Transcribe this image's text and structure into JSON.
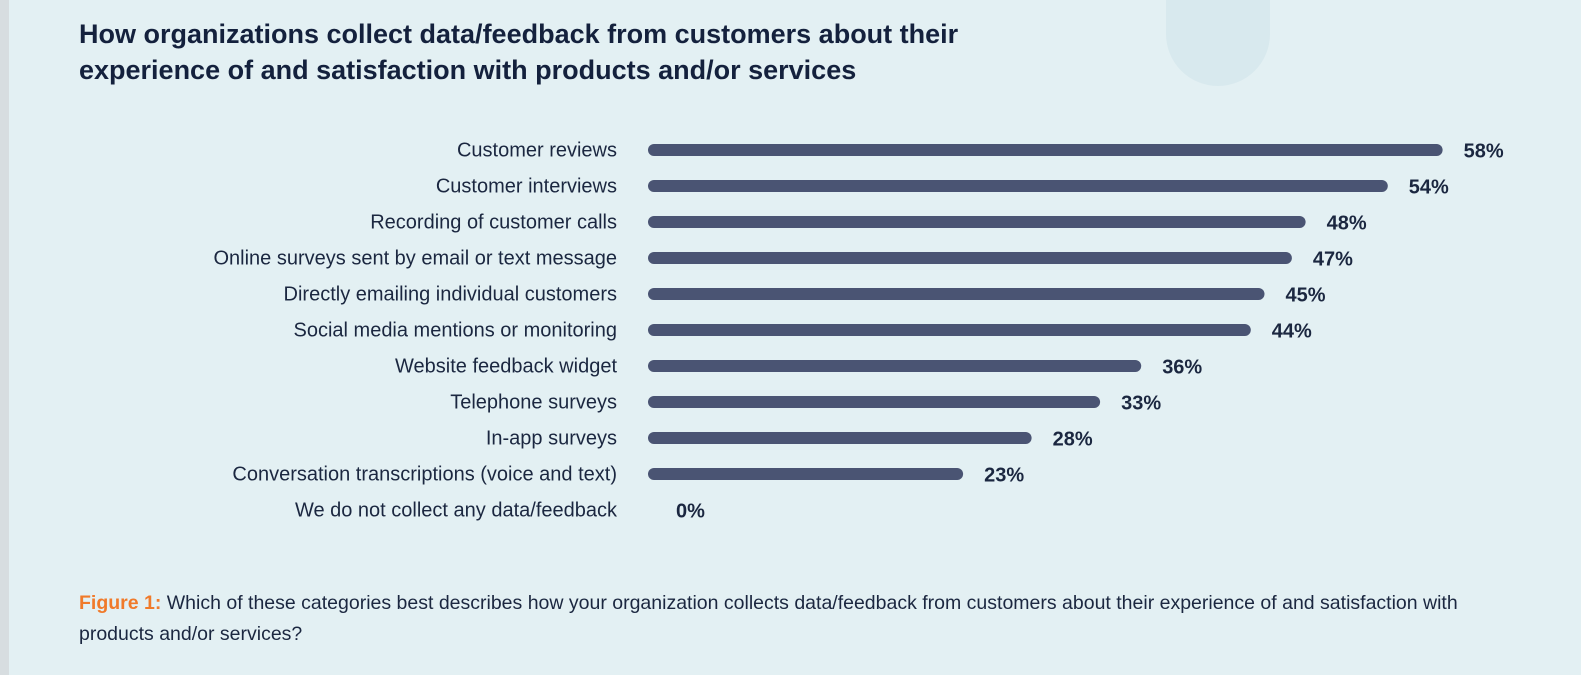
{
  "title": "How organizations collect data/feedback from customers about their experience of and satisfaction with products and/or services",
  "caption": {
    "label": "Figure 1:",
    "text": " Which of these categories best describes how your organization collects data/feedback from customers about their experience of and satisfaction with products and/or services?"
  },
  "colors": {
    "bar": "#4a5473",
    "accent": "#f07a2a",
    "background": "#e3f0f3"
  },
  "chart_data": {
    "type": "bar",
    "orientation": "horizontal",
    "categories": [
      "Customer reviews",
      "Customer interviews",
      "Recording of customer calls",
      "Online surveys sent by email or text message",
      "Directly emailing individual customers",
      "Social media mentions or monitoring",
      "Website feedback widget",
      "Telephone surveys",
      "In-app surveys",
      "Conversation transcriptions (voice and text)",
      "We do not collect any data/feedback"
    ],
    "values": [
      58,
      54,
      48,
      47,
      45,
      44,
      36,
      33,
      28,
      23,
      0
    ],
    "value_labels": [
      "58%",
      "54%",
      "48%",
      "47%",
      "45%",
      "44%",
      "36%",
      "33%",
      "28%",
      "23%",
      "0%"
    ],
    "unit": "%",
    "grid": false,
    "legend": "none"
  }
}
